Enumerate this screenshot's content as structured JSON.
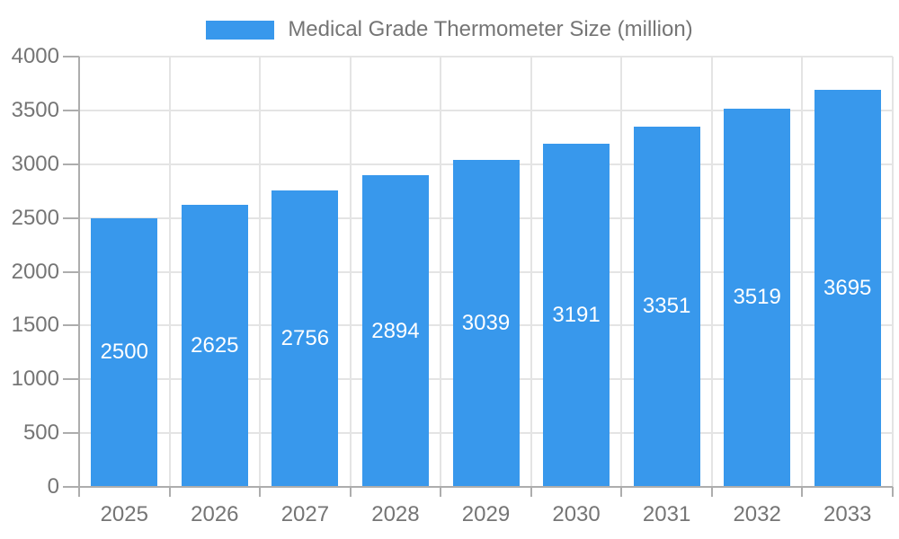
{
  "chart_data": {
    "type": "bar",
    "title": "Medical Grade Thermometer Size (million)",
    "categories": [
      "2025",
      "2026",
      "2027",
      "2028",
      "2029",
      "2030",
      "2031",
      "2032",
      "2033"
    ],
    "values": [
      2500,
      2625,
      2756,
      2894,
      3039,
      3191,
      3351,
      3519,
      3695
    ],
    "xlabel": "",
    "ylabel": "",
    "ylim": [
      0,
      4000
    ],
    "yticks": [
      0,
      500,
      1000,
      1500,
      2000,
      2500,
      3000,
      3500,
      4000
    ],
    "bar_labels_shown": true,
    "grid": true,
    "legend_position": "top",
    "colors": {
      "bar": "#3898ec",
      "bar_label": "#ffffff",
      "axis_text": "#757575",
      "axis_line": "#adadad",
      "gridline": "#e4e4e4",
      "background": "#ffffff"
    }
  }
}
